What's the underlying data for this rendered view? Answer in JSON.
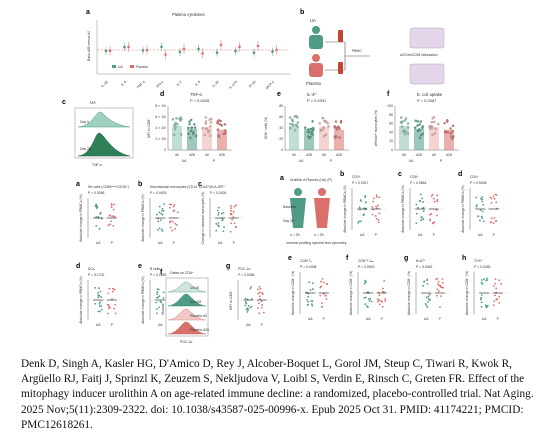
{
  "panels": {
    "a": {
      "label": "a",
      "title": "Plasma cytokines",
      "ylabel": "Ratio d28 versus d0",
      "legend": [
        "UA",
        "Placebo"
      ],
      "categories": [
        "IL-1β",
        "IL-6",
        "TNF-α",
        "IFN-γ",
        "IL-2",
        "IL-8",
        "IL-10",
        "IL-17A",
        "IP-10",
        "MCP-1"
      ]
    },
    "b": {
      "label": "b",
      "texts": [
        "UA",
        "PBMC",
        "αCD3/αCD28 stimulation",
        "Placebo"
      ]
    },
    "c": {
      "label": "c",
      "title": "UA",
      "day0": "Day 0",
      "day28": "Day 28",
      "xlabel": "TNF-α"
    },
    "d": {
      "label": "d",
      "title": "TNF-α",
      "p": "P = 0.0039",
      "ylabel": "MFI on CD8⁺",
      "yticks": [
        "0",
        "2 × 10³",
        "4 × 10³",
        "6 × 10³",
        "8 × 10³"
      ],
      "x": [
        "d0",
        "d28",
        "d0",
        "d28"
      ],
      "groups": [
        "UA",
        "P"
      ]
    },
    "e": {
      "label": "e",
      "title": "IL-4ʰⁱ",
      "p": "P = 0.0091",
      "ylabel": "CD8⁺ cells (%)",
      "yticks": [
        "0",
        "20",
        "40",
        "60",
        "80"
      ],
      "x": [
        "d0",
        "d28",
        "d0",
        "d28"
      ],
      "groups": [
        "UA",
        "P"
      ]
    },
    "f": {
      "label": "f",
      "title": "E. coli uptake",
      "p": "P = 0.0087",
      "ylabel": "pHrodoʰⁱ monocytes (%)",
      "yticks": [
        "0",
        "20",
        "40",
        "60",
        "80",
        "100"
      ],
      "x": [
        "d0",
        "d28",
        "d0",
        "d28"
      ],
      "groups": [
        "UA",
        "P"
      ]
    },
    "lower": [
      {
        "label": "a",
        "title": "NK cells (CD56ᵇʳⁱᵍʰᵗCD16⁺)",
        "p": "P = 0.0056",
        "ylabel": "Absolute change in PBMCs (%)"
      },
      {
        "label": "b",
        "title": "Nonclassical monocytes (CD14⁻CD16⁺)",
        "p": "P = 0.0403",
        "ylabel": "Absolute change in PBMCs (%)"
      },
      {
        "label": "c",
        "title": "HLA-DRʰⁱ",
        "p": "P = 0.0426",
        "ylabel": "Change in classical monocytes (%)"
      },
      {
        "label": "d",
        "title": "DCs",
        "p": "P = 0.1702",
        "ylabel": "Absolute change in PBMCs (%)"
      },
      {
        "label": "e",
        "title": "B cells",
        "p": "P = 0.2863",
        "ylabel": "Absolute change in PBMCs (%)"
      },
      {
        "label": "g",
        "title": "PGC-1α",
        "p": "P = 0.0286",
        "ylabel": "MFI on CD8⁺"
      }
    ],
    "f_flow": {
      "label": "f",
      "title": "Gated on CD8⁺",
      "rows": [
        "UA d0",
        "UA d28",
        "Placebo d0",
        "Placebo d28"
      ],
      "xlabel": "PGC-1α",
      "ylabel": "Modal"
    },
    "lower_b_design": {
      "label": "a",
      "title": "Urolithin A Placebo (UA) (P)",
      "texts": [
        "Baseline",
        "Day 28",
        "n = 25",
        "n = 25",
        "Immune profiling spectral flow cytometry"
      ]
    },
    "right": [
      {
        "label": "b",
        "title": "CD3⁺",
        "p": "P = 0.0317",
        "ylabel": "Absolute change in PBMCs (%)"
      },
      {
        "label": "c",
        "title": "CD8⁺",
        "p": "P = 0.0864",
        "ylabel": "Absolute change in PBMCs (%)"
      },
      {
        "label": "d",
        "title": "CD4⁺",
        "p": "P = 0.5408",
        "ylabel": "Absolute change in PBMCs (%)"
      },
      {
        "label": "e",
        "title": "CD8⁺Tₙ",
        "p": "P = 0.0408",
        "ylabel": "Absolute change in CD8⁺ (%)"
      },
      {
        "label": "f",
        "title": "CD8⁺Tₛcₘ",
        "p": "P = 0.0943",
        "ylabel": "Absolute change in CD8⁺ (%)"
      },
      {
        "label": "g",
        "title": "Ki-67⁺",
        "p": "P = 0.0062",
        "ylabel": "Absolute change in CD8⁺ (%)"
      },
      {
        "label": "h",
        "title": "TOX⁺",
        "p": "P = 0.0265",
        "ylabel": "Absolute change in CD8⁺ (%)"
      }
    ],
    "group_labels": [
      "UA",
      "P"
    ]
  },
  "colors": {
    "ua": "#4f9b86",
    "placebo": "#d9706a",
    "ua_light": "#8cc3b0",
    "placebo_light": "#eab0aa"
  },
  "citation": "Denk D, Singh A, Kasler HG, D'Amico D, Rey J, Alcober-Boquet L, Gorol JM, Steup C, Tiwari R, Kwok R, Argüello RJ, Faitj J, Sprinzl K, Zeuzem S, Nekljudova V, Loibl S, Verdin E, Rinsch C, Greten FR. Effect of the mitophagy inducer urolithin A on age-related immune decline: a randomized, placebo-controlled trial. Nat Aging. 2025 Nov;5(11):2309-2322. doi: 10.1038/s43587-025-00996-x. Epub 2025 Oct 31. PMID: 41174221; PMCID: PMC12618261."
}
